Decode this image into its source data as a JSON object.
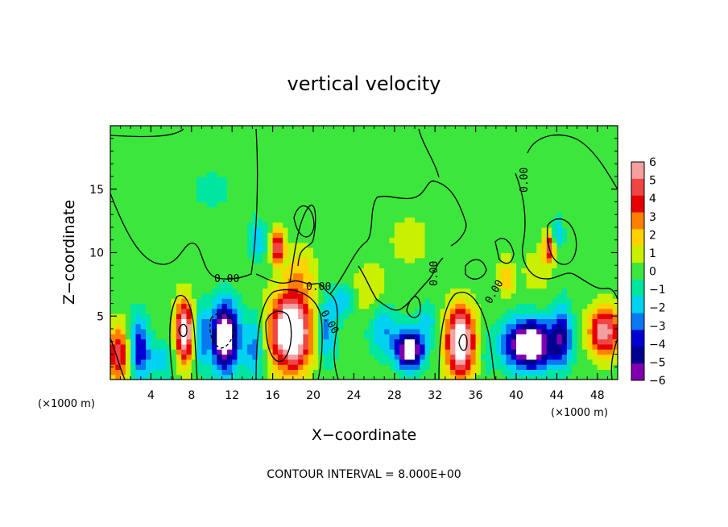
{
  "chart_data": {
    "type": "heatmap",
    "title": "vertical velocity",
    "xlabel": "X−coordinate",
    "ylabel": "Z−coordinate",
    "x_unit": "(×1000 m)",
    "y_unit": "(×1000 m)",
    "xlim": [
      0,
      50
    ],
    "ylim": [
      0,
      20
    ],
    "x_ticks": [
      4,
      8,
      12,
      16,
      20,
      24,
      28,
      32,
      36,
      40,
      44,
      48
    ],
    "x_tick_labels": [
      "4",
      "8",
      "12",
      "16",
      "20",
      "24",
      "28",
      "32",
      "36",
      "40",
      "44",
      "48"
    ],
    "y_ticks": [
      5,
      10,
      15
    ],
    "y_tick_labels": [
      "5",
      "10",
      "15"
    ],
    "colorbar": {
      "levels": [
        6,
        5,
        4,
        3,
        2,
        1,
        0,
        -1,
        -2,
        -3,
        -4,
        -5,
        -6
      ],
      "labels": [
        "6",
        "5",
        "4",
        "3",
        "2",
        "1",
        "0",
        "−1",
        "−2",
        "−3",
        "−4",
        "−5",
        "−6"
      ],
      "colors": [
        "#f5a0a0",
        "#f04545",
        "#e60000",
        "#ff8000",
        "#ffd200",
        "#c8f000",
        "#3ce63c",
        "#00e6a0",
        "#00d2f0",
        "#0a78f0",
        "#0000d2",
        "#000090",
        "#8000b0"
      ],
      "saturated_high_color": "#ffffff",
      "saturated_low_color": "#ffffff"
    },
    "contour_interval_label": "CONTOUR INTERVAL = 8.000E+00",
    "contour_labels": [
      "0.00",
      "0.00",
      "0.00",
      "0.00",
      "0.00",
      "0.00",
      "0.00"
    ],
    "features": [
      {
        "x": 0.8,
        "z": 2.0,
        "w": 5.0,
        "sx": 1.2,
        "sz": 2.2
      },
      {
        "x": 2.8,
        "z": 2.5,
        "w": -4.5,
        "sx": 1.0,
        "sz": 2.5
      },
      {
        "x": 5.0,
        "z": 1.5,
        "w": -2.0,
        "sx": 1.5,
        "sz": 1.5
      },
      {
        "x": 7.3,
        "z": 3.8,
        "w": 7.5,
        "sx": 0.9,
        "sz": 2.4
      },
      {
        "x": 9.0,
        "z": 3.5,
        "w": -3.0,
        "sx": 0.7,
        "sz": 2.5
      },
      {
        "x": 11.3,
        "z": 3.4,
        "w": -9.0,
        "sx": 1.3,
        "sz": 2.6
      },
      {
        "x": 14.2,
        "z": 2.5,
        "w": -3.0,
        "sx": 1.0,
        "sz": 2.5
      },
      {
        "x": 17.8,
        "z": 3.8,
        "w": 9.5,
        "sx": 2.0,
        "sz": 2.9
      },
      {
        "x": 16.5,
        "z": 10.5,
        "w": 6.0,
        "sx": 0.6,
        "sz": 1.3
      },
      {
        "x": 14.5,
        "z": 11.0,
        "w": -2.5,
        "sx": 0.8,
        "sz": 1.5
      },
      {
        "x": 18.7,
        "z": 8.5,
        "w": 2.0,
        "sx": 1.5,
        "sz": 2.0
      },
      {
        "x": 21.3,
        "z": 4.0,
        "w": -3.2,
        "sx": 1.0,
        "sz": 2.5
      },
      {
        "x": 23.0,
        "z": 6.2,
        "w": -2.5,
        "sx": 1.0,
        "sz": 1.2
      },
      {
        "x": 25.5,
        "z": 7.0,
        "w": 1.5,
        "sx": 1.5,
        "sz": 2.0
      },
      {
        "x": 27.0,
        "z": 4.0,
        "w": -2.5,
        "sx": 1.5,
        "sz": 2.0
      },
      {
        "x": 29.5,
        "z": 2.3,
        "w": -8.5,
        "sx": 1.3,
        "sz": 1.4
      },
      {
        "x": 31.2,
        "z": 4.5,
        "w": -2.0,
        "sx": 1.2,
        "sz": 1.5
      },
      {
        "x": 34.5,
        "z": 3.0,
        "w": 8.5,
        "sx": 1.4,
        "sz": 2.6
      },
      {
        "x": 37.0,
        "z": 2.0,
        "w": -1.0,
        "sx": 0.6,
        "sz": 2.0
      },
      {
        "x": 39.0,
        "z": 8.0,
        "w": 2.5,
        "sx": 0.7,
        "sz": 1.5
      },
      {
        "x": 41.3,
        "z": 2.8,
        "w": -9.0,
        "sx": 2.4,
        "sz": 1.9
      },
      {
        "x": 43.3,
        "z": 10.5,
        "w": 5.0,
        "sx": 0.6,
        "sz": 1.2
      },
      {
        "x": 44.0,
        "z": 11.5,
        "w": -3.0,
        "sx": 0.6,
        "sz": 1.2
      },
      {
        "x": 44.5,
        "z": 3.5,
        "w": -4.0,
        "sx": 1.0,
        "sz": 2.5
      },
      {
        "x": 42.0,
        "z": 8.5,
        "w": 1.0,
        "sx": 1.5,
        "sz": 2.0
      },
      {
        "x": 48.7,
        "z": 3.8,
        "w": 6.5,
        "sx": 1.5,
        "sz": 1.8
      },
      {
        "x": 29.5,
        "z": 11.0,
        "w": 0.7,
        "sx": 3.0,
        "sz": 3.0
      },
      {
        "x": 10.0,
        "z": 15.0,
        "w": -0.6,
        "sx": 4.0,
        "sz": 3.0
      }
    ]
  }
}
